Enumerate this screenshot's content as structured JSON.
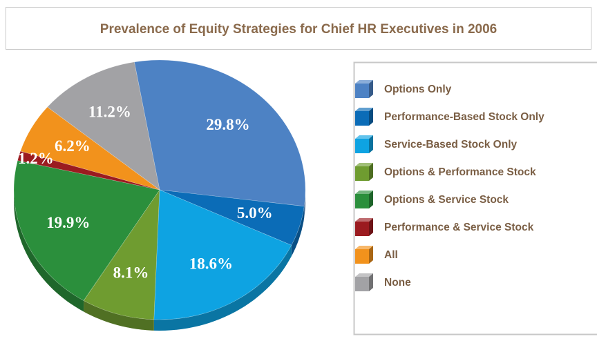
{
  "chart_data": {
    "type": "pie",
    "title": "Prevalence of Equity Strategies for Chief HR Executives in 2006",
    "categories": [
      "Options Only",
      "Performance-Based Stock Only",
      "Service-Based Stock Only",
      "Options & Performance Stock",
      "Options & Service Stock",
      "Performance & Service Stock",
      "All",
      "None"
    ],
    "values": [
      29.8,
      5.0,
      18.6,
      8.1,
      19.9,
      1.2,
      6.2,
      11.2
    ],
    "value_labels": [
      "29.8%",
      "5.0%",
      "18.6%",
      "8.1%",
      "19.9%",
      "1.2%",
      "6.2%",
      "11.2%"
    ],
    "colors": [
      "#4d82c4",
      "#0b6cb7",
      "#0ea3e2",
      "#6f9c30",
      "#2b8f3c",
      "#9b1b20",
      "#f2921c",
      "#a2a2a5"
    ],
    "legend": "right"
  }
}
